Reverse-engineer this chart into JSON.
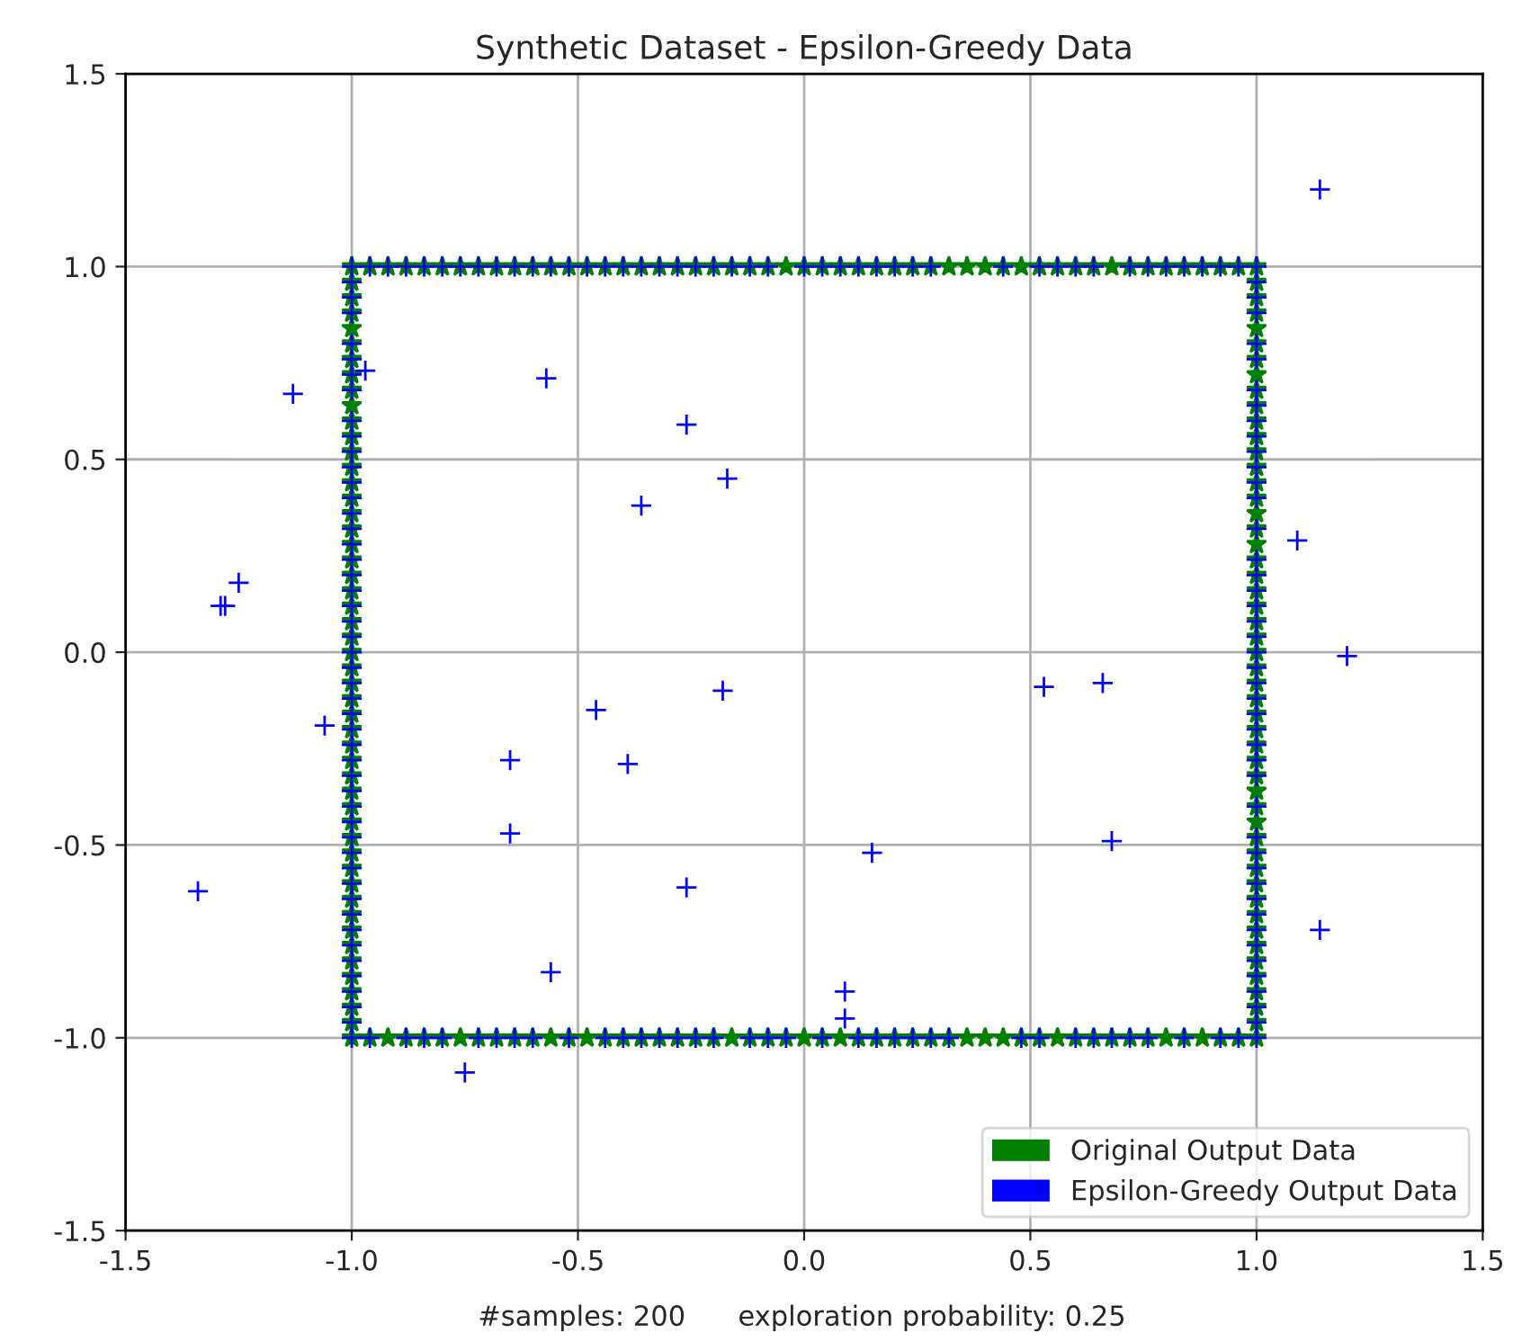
{
  "chart_data": {
    "type": "scatter",
    "title": "Synthetic Dataset - Epsilon-Greedy Data",
    "annotations": [
      "#samples: 200      exploration probability: 0.25"
    ],
    "xlim": [
      -1.5,
      1.5
    ],
    "ylim": [
      -1.5,
      1.5
    ],
    "xticks": [
      -1.5,
      {
        "value": -1,
        "label": "-1.0"
      },
      -0.5,
      {
        "value": 0,
        "label": "0.0"
      },
      0.5,
      {
        "value": 1,
        "label": "1.0"
      },
      1.5
    ],
    "yticks": [
      -1.5,
      {
        "value": -1,
        "label": "-1.0"
      },
      -0.5,
      {
        "value": 0,
        "label": "0.0"
      },
      0.5,
      {
        "value": 1,
        "label": "1.0"
      },
      1.5
    ],
    "grid": true,
    "legend": "bottom right",
    "series": [
      {
        "name": "Original Output Data",
        "color": "#008000",
        "marker": "star",
        "x": [
          -1,
          -0.96,
          -0.92,
          -0.88,
          -0.84,
          -0.8,
          -0.76,
          -0.72,
          -0.68,
          -0.64,
          -0.6,
          -0.56,
          -0.52,
          -0.48,
          -0.44,
          -0.4,
          -0.36,
          -0.32,
          -0.28,
          -0.24,
          -0.2,
          -0.16,
          -0.12,
          -0.08,
          -0.04,
          0,
          0.04,
          0.08,
          0.12,
          0.16,
          0.2,
          0.24,
          0.28,
          0.32,
          0.36,
          0.4,
          0.44,
          0.48,
          0.52,
          0.56,
          0.6,
          0.64,
          0.68,
          0.72,
          0.76,
          0.8,
          0.84,
          0.88,
          0.92,
          0.96,
          1,
          1,
          1,
          1,
          1,
          1,
          1,
          1,
          1,
          1,
          1,
          1,
          1,
          1,
          1,
          1,
          1,
          1,
          1,
          1,
          1,
          1,
          1,
          1,
          1,
          1,
          1,
          1,
          1,
          1,
          1,
          1,
          1,
          1,
          1,
          1,
          1,
          1,
          1,
          1,
          1,
          1,
          1,
          1,
          1,
          1,
          1,
          1,
          1,
          1,
          1,
          0.96,
          0.92,
          0.88,
          0.84,
          0.8,
          0.76,
          0.72,
          0.68,
          0.64,
          0.6,
          0.56,
          0.52,
          0.48,
          0.44,
          0.4,
          0.36,
          0.32,
          0.28,
          0.24,
          0.2,
          0.16,
          0.12,
          0.08,
          0.04,
          0,
          -0.04,
          -0.08,
          -0.12,
          -0.16,
          -0.2,
          -0.24,
          -0.28,
          -0.32,
          -0.36,
          -0.4,
          -0.44,
          -0.48,
          -0.52,
          -0.56,
          -0.6,
          -0.64,
          -0.68,
          -0.72,
          -0.76,
          -0.8,
          -0.84,
          -0.88,
          -0.92,
          -0.96,
          -1,
          -1,
          -1,
          -1,
          -1,
          -1,
          -1,
          -1,
          -1,
          -1,
          -1,
          -1,
          -1,
          -1,
          -1,
          -1,
          -1,
          -1,
          -1,
          -1,
          -1,
          -1,
          -1,
          -1,
          -1,
          -1,
          -1,
          -1,
          -1,
          -1,
          -1,
          -1,
          -1,
          -1,
          -1,
          -1,
          -1,
          -1,
          -1,
          -1,
          -1,
          -1,
          -1,
          -1,
          -1,
          -1,
          -1,
          -1,
          -1,
          -1
        ],
        "values": [
          1,
          1,
          1,
          1,
          1,
          1,
          1,
          1,
          1,
          1,
          1,
          1,
          1,
          1,
          1,
          1,
          1,
          1,
          1,
          1,
          1,
          1,
          1,
          1,
          1,
          1,
          1,
          1,
          1,
          1,
          1,
          1,
          1,
          1,
          1,
          1,
          1,
          1,
          1,
          1,
          1,
          1,
          1,
          1,
          1,
          1,
          1,
          1,
          1,
          1,
          1,
          0.96,
          0.92,
          0.88,
          0.84,
          0.8,
          0.76,
          0.72,
          0.68,
          0.64,
          0.6,
          0.56,
          0.52,
          0.48,
          0.44,
          0.4,
          0.36,
          0.32,
          0.28,
          0.24,
          0.2,
          0.16,
          0.12,
          0.08,
          0.04,
          0,
          -0.04,
          -0.08,
          -0.12,
          -0.16,
          -0.2,
          -0.24,
          -0.28,
          -0.32,
          -0.36,
          -0.4,
          -0.44,
          -0.48,
          -0.52,
          -0.56,
          -0.6,
          -0.64,
          -0.68,
          -0.72,
          -0.76,
          -0.8,
          -0.84,
          -0.88,
          -0.92,
          -0.96,
          -1,
          -1,
          -1,
          -1,
          -1,
          -1,
          -1,
          -1,
          -1,
          -1,
          -1,
          -1,
          -1,
          -1,
          -1,
          -1,
          -1,
          -1,
          -1,
          -1,
          -1,
          -1,
          -1,
          -1,
          -1,
          -1,
          -1,
          -1,
          -1,
          -1,
          -1,
          -1,
          -1,
          -1,
          -1,
          -1,
          -1,
          -1,
          -1,
          -1,
          -1,
          -1,
          -1,
          -1,
          -1,
          -1,
          -1,
          -1,
          -1,
          -1,
          -1,
          -0.96,
          -0.92,
          -0.88,
          -0.84,
          -0.8,
          -0.76,
          -0.72,
          -0.68,
          -0.64,
          -0.6,
          -0.56,
          -0.52,
          -0.48,
          -0.44,
          -0.4,
          -0.36,
          -0.32,
          -0.28,
          -0.24,
          -0.2,
          -0.16,
          -0.12,
          -0.08,
          -0.04,
          0,
          0.04,
          0.08,
          0.12,
          0.16,
          0.2,
          0.24,
          0.28,
          0.32,
          0.36,
          0.4,
          0.44,
          0.48,
          0.52,
          0.56,
          0.6,
          0.64,
          0.68,
          0.72,
          0.76,
          0.8,
          0.84,
          0.88,
          0.92,
          0.96
        ]
      },
      {
        "name": "Epsilon-Greedy Output Data",
        "color": "#0000ff",
        "marker": "cross",
        "x": [
          -1,
          -0.96,
          -0.92,
          -0.88,
          -0.84,
          -0.8,
          -0.76,
          -0.72,
          -0.68,
          -0.64,
          -0.6,
          -0.56,
          -0.52,
          -0.48,
          -0.44,
          -0.4,
          -0.36,
          -0.32,
          -0.28,
          -0.24,
          -0.2,
          -0.16,
          -0.12,
          -0.08,
          0,
          0.04,
          0.08,
          0.12,
          0.16,
          0.2,
          0.24,
          0.28,
          0.44,
          0.52,
          0.56,
          0.6,
          0.64,
          0.72,
          0.76,
          0.8,
          0.84,
          0.88,
          0.92,
          0.96,
          1,
          1,
          1,
          1,
          1,
          1,
          1,
          1,
          1,
          1,
          1,
          1,
          1,
          1,
          1,
          1,
          1,
          1,
          1,
          1,
          1,
          1,
          1,
          1,
          1,
          1,
          1,
          1,
          1,
          1,
          1,
          1,
          1,
          1,
          1,
          1,
          1,
          1,
          1,
          1,
          1,
          1,
          1,
          1,
          1,
          0.96,
          0.92,
          0.84,
          0.76,
          0.72,
          0.68,
          0.64,
          0.6,
          0.52,
          0.48,
          0.32,
          0.28,
          0.24,
          0.2,
          0.16,
          0.12,
          0.04,
          -0.04,
          -0.08,
          -0.12,
          -0.2,
          -0.24,
          -0.28,
          -0.32,
          -0.36,
          -0.4,
          -0.44,
          -0.52,
          -0.6,
          -0.64,
          -0.68,
          -0.72,
          -0.8,
          -0.84,
          -0.88,
          -0.96,
          -1,
          -1,
          -1,
          -1,
          -1,
          -1,
          -1,
          -1,
          -1,
          -1,
          -1,
          -1,
          -1,
          -1,
          -1,
          -1,
          -1,
          -1,
          -1,
          -1,
          -1,
          -1,
          -1,
          -1,
          -1,
          -1,
          -1,
          -1,
          -1,
          -1,
          -1,
          -1,
          -1,
          -1,
          -1,
          -1,
          -1,
          -1,
          -1,
          -1,
          -1,
          -1,
          -1,
          -1,
          -1,
          -1,
          -1,
          -1,
          1.14,
          -0.97,
          -1.13,
          -0.57,
          -0.26,
          -0.17,
          -0.36,
          -1.25,
          -1.29,
          -1.28,
          -1.06,
          -0.46,
          -0.18,
          -0.65,
          -0.39,
          -0.65,
          -1.34,
          -0.26,
          0.15,
          -0.56,
          0.09,
          0.09,
          -0.75,
          1.09,
          1.2,
          0.53,
          0.66,
          0.68,
          1.14
        ],
        "values": [
          1,
          1,
          1,
          1,
          1,
          1,
          1,
          1,
          1,
          1,
          1,
          1,
          1,
          1,
          1,
          1,
          1,
          1,
          1,
          1,
          1,
          1,
          1,
          1,
          1,
          1,
          1,
          1,
          1,
          1,
          1,
          1,
          1,
          1,
          1,
          1,
          1,
          1,
          1,
          1,
          1,
          1,
          1,
          1,
          1,
          0.96,
          0.92,
          0.88,
          0.8,
          0.76,
          0.68,
          0.64,
          0.6,
          0.56,
          0.52,
          0.48,
          0.44,
          0.4,
          0.32,
          0.24,
          0.2,
          0.16,
          0.12,
          0.08,
          0.04,
          0,
          -0.04,
          -0.08,
          -0.12,
          -0.16,
          -0.2,
          -0.24,
          -0.28,
          -0.32,
          -0.4,
          -0.48,
          -0.52,
          -0.56,
          -0.6,
          -0.64,
          -0.68,
          -0.72,
          -0.76,
          -0.8,
          -0.84,
          -0.88,
          -0.92,
          -0.96,
          -1,
          -1,
          -1,
          -1,
          -1,
          -1,
          -1,
          -1,
          -1,
          -1,
          -1,
          -1,
          -1,
          -1,
          -1,
          -1,
          -1,
          -1,
          -1,
          -1,
          -1,
          -1,
          -1,
          -1,
          -1,
          -1,
          -1,
          -1,
          -1,
          -1,
          -1,
          -1,
          -1,
          -1,
          -1,
          -1,
          -1,
          -1,
          -0.96,
          -0.92,
          -0.88,
          -0.84,
          -0.8,
          -0.76,
          -0.72,
          -0.68,
          -0.64,
          -0.6,
          -0.56,
          -0.52,
          -0.48,
          -0.44,
          -0.4,
          -0.36,
          -0.32,
          -0.28,
          -0.24,
          -0.2,
          -0.16,
          -0.12,
          -0.08,
          -0.04,
          0,
          0.04,
          0.08,
          0.12,
          0.16,
          0.2,
          0.24,
          0.28,
          0.32,
          0.36,
          0.4,
          0.44,
          0.48,
          0.52,
          0.56,
          0.6,
          0.68,
          0.72,
          0.76,
          0.8,
          0.88,
          0.92,
          0.96,
          1.2,
          0.73,
          0.67,
          0.71,
          0.59,
          0.45,
          0.38,
          0.18,
          0.12,
          0.12,
          -0.19,
          -0.15,
          -0.1,
          -0.28,
          -0.29,
          -0.47,
          -0.62,
          -0.61,
          -0.52,
          -0.83,
          -0.88,
          -0.95,
          -1.09,
          0.29,
          -0.01,
          -0.09,
          -0.08,
          -0.49,
          -0.72
        ]
      }
    ]
  }
}
